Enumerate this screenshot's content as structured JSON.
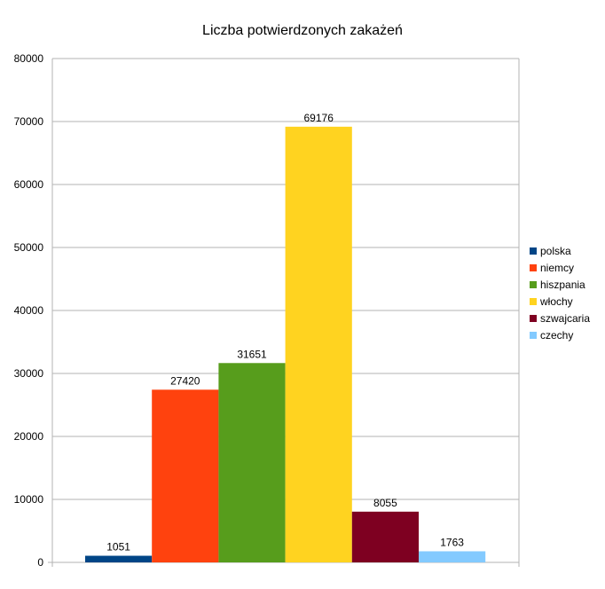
{
  "chart_data": {
    "type": "bar",
    "title": "Liczba potwierdzonych zakażeń",
    "xlabel": "",
    "ylabel": "",
    "ylim": [
      0,
      80000
    ],
    "yticks": [
      0,
      10000,
      20000,
      30000,
      40000,
      50000,
      60000,
      70000,
      80000
    ],
    "ytick_labels": [
      "0",
      "10000",
      "20000",
      "30000",
      "40000",
      "50000",
      "60000",
      "70000",
      "80000"
    ],
    "grid": true,
    "legend_position": "right",
    "categories": [
      ""
    ],
    "series": [
      {
        "name": "polska",
        "values": [
          1051
        ],
        "label": "1051",
        "color": "#004586"
      },
      {
        "name": "niemcy",
        "values": [
          27420
        ],
        "label": "27420",
        "color": "#ff420e"
      },
      {
        "name": "hiszpania",
        "values": [
          31651
        ],
        "label": "31651",
        "color": "#579d1c"
      },
      {
        "name": "włochy",
        "values": [
          69176
        ],
        "label": "69176",
        "color": "#ffd320"
      },
      {
        "name": "szwajcaria",
        "values": [
          8055
        ],
        "label": "8055",
        "color": "#7e0021"
      },
      {
        "name": "czechy",
        "values": [
          1763
        ],
        "label": "1763",
        "color": "#83caff"
      }
    ]
  }
}
